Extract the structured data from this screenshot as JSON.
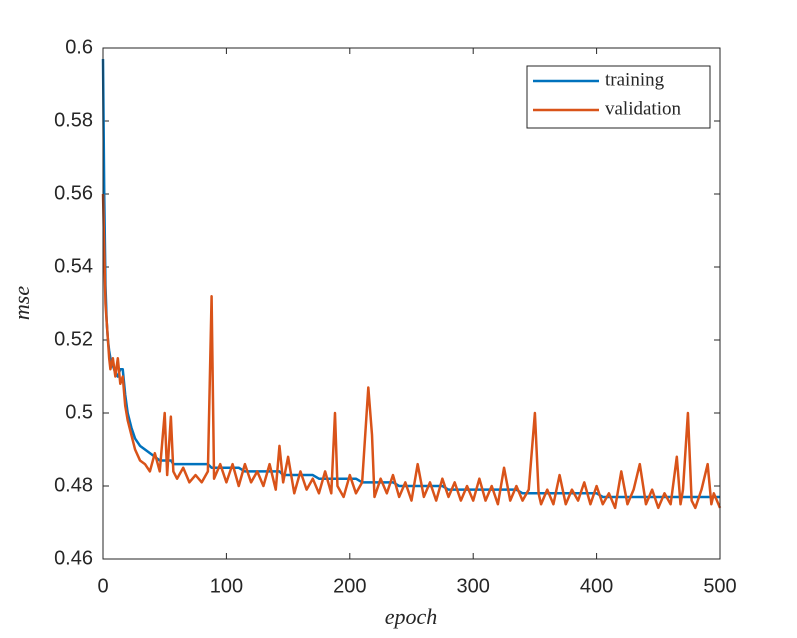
{
  "chart_data": {
    "type": "line",
    "xlabel": "epoch",
    "ylabel": "mse",
    "x": [
      0,
      1,
      2,
      3,
      4,
      5,
      6,
      8,
      10,
      12,
      14,
      16,
      18,
      20,
      23,
      26,
      30,
      34,
      38,
      42,
      46,
      50,
      52,
      55,
      57,
      60,
      65,
      70,
      75,
      80,
      85,
      88,
      90,
      95,
      100,
      105,
      110,
      115,
      120,
      125,
      130,
      135,
      140,
      143,
      146,
      150,
      155,
      160,
      165,
      170,
      175,
      180,
      185,
      188,
      190,
      195,
      200,
      205,
      210,
      215,
      218,
      220,
      225,
      230,
      235,
      240,
      245,
      250,
      255,
      260,
      265,
      270,
      275,
      280,
      285,
      290,
      295,
      300,
      305,
      310,
      315,
      320,
      325,
      330,
      335,
      340,
      345,
      350,
      353,
      355,
      360,
      365,
      370,
      375,
      380,
      385,
      390,
      395,
      400,
      405,
      410,
      415,
      420,
      425,
      430,
      435,
      440,
      445,
      450,
      455,
      460,
      465,
      468,
      470,
      474,
      477,
      480,
      485,
      490,
      493,
      495,
      500
    ],
    "series": [
      {
        "name": "training",
        "color": "#0072bd",
        "values": [
          0.597,
          0.56,
          0.535,
          0.525,
          0.52,
          0.517,
          0.515,
          0.513,
          0.511,
          0.51,
          0.512,
          0.512,
          0.505,
          0.5,
          0.496,
          0.493,
          0.491,
          0.49,
          0.489,
          0.488,
          0.487,
          0.487,
          0.487,
          0.487,
          0.486,
          0.486,
          0.486,
          0.486,
          0.486,
          0.486,
          0.486,
          0.485,
          0.485,
          0.485,
          0.485,
          0.485,
          0.485,
          0.484,
          0.484,
          0.484,
          0.484,
          0.484,
          0.484,
          0.484,
          0.483,
          0.483,
          0.483,
          0.483,
          0.483,
          0.483,
          0.482,
          0.482,
          0.482,
          0.482,
          0.482,
          0.482,
          0.482,
          0.482,
          0.481,
          0.481,
          0.481,
          0.481,
          0.481,
          0.481,
          0.481,
          0.48,
          0.48,
          0.48,
          0.48,
          0.48,
          0.48,
          0.48,
          0.48,
          0.479,
          0.479,
          0.479,
          0.479,
          0.479,
          0.479,
          0.479,
          0.479,
          0.479,
          0.479,
          0.479,
          0.479,
          0.478,
          0.478,
          0.478,
          0.478,
          0.478,
          0.478,
          0.478,
          0.478,
          0.478,
          0.478,
          0.478,
          0.478,
          0.478,
          0.478,
          0.477,
          0.477,
          0.477,
          0.477,
          0.477,
          0.477,
          0.477,
          0.477,
          0.477,
          0.477,
          0.477,
          0.477,
          0.477,
          0.477,
          0.477,
          0.477,
          0.477,
          0.477,
          0.477,
          0.477,
          0.477,
          0.477,
          0.477
        ]
      },
      {
        "name": "validation",
        "color": "#d95319",
        "values": [
          0.56,
          0.545,
          0.53,
          0.525,
          0.52,
          0.515,
          0.512,
          0.515,
          0.51,
          0.515,
          0.508,
          0.51,
          0.502,
          0.498,
          0.494,
          0.49,
          0.487,
          0.486,
          0.484,
          0.489,
          0.484,
          0.5,
          0.483,
          0.499,
          0.484,
          0.482,
          0.485,
          0.481,
          0.483,
          0.481,
          0.484,
          0.532,
          0.482,
          0.486,
          0.481,
          0.486,
          0.48,
          0.486,
          0.481,
          0.484,
          0.48,
          0.486,
          0.479,
          0.491,
          0.481,
          0.488,
          0.478,
          0.484,
          0.479,
          0.482,
          0.478,
          0.484,
          0.478,
          0.5,
          0.48,
          0.477,
          0.483,
          0.478,
          0.481,
          0.507,
          0.494,
          0.477,
          0.482,
          0.478,
          0.483,
          0.477,
          0.481,
          0.476,
          0.486,
          0.477,
          0.481,
          0.476,
          0.482,
          0.477,
          0.481,
          0.476,
          0.48,
          0.476,
          0.482,
          0.476,
          0.48,
          0.475,
          0.485,
          0.476,
          0.48,
          0.476,
          0.479,
          0.5,
          0.478,
          0.475,
          0.479,
          0.475,
          0.483,
          0.475,
          0.479,
          0.476,
          0.481,
          0.475,
          0.48,
          0.475,
          0.478,
          0.474,
          0.484,
          0.475,
          0.479,
          0.486,
          0.475,
          0.479,
          0.474,
          0.478,
          0.475,
          0.488,
          0.475,
          0.479,
          0.5,
          0.476,
          0.474,
          0.479,
          0.486,
          0.475,
          0.478,
          0.474
        ]
      }
    ],
    "xlim": [
      0,
      500
    ],
    "xticks": [
      0,
      100,
      200,
      300,
      400,
      500
    ],
    "ylim": [
      0.46,
      0.6
    ],
    "yticks": [
      0.46,
      0.48,
      0.5,
      0.52,
      0.54,
      0.56,
      0.58,
      0.6
    ],
    "legend": "northeast"
  }
}
